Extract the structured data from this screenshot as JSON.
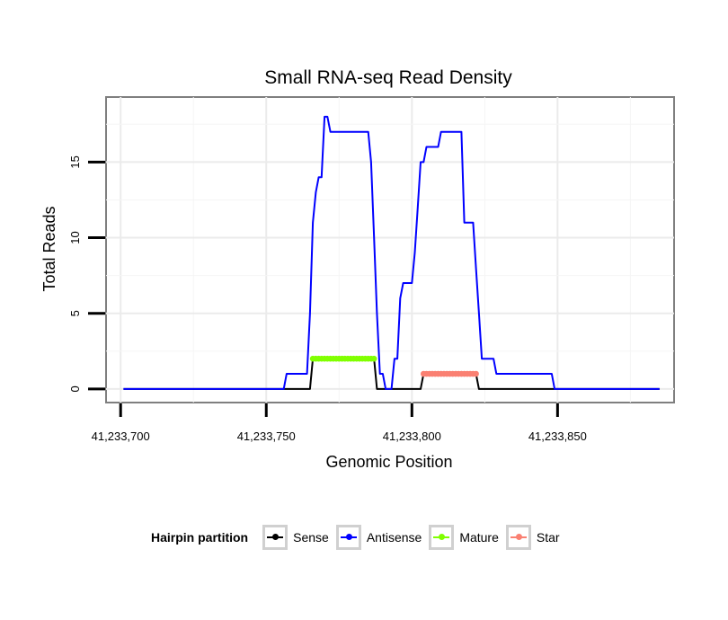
{
  "chart_data": {
    "type": "line",
    "title": "Small RNA-seq Read Density",
    "xlabel": "Genomic Position",
    "ylabel": "Total Reads",
    "xlim": [
      41233695,
      41233890
    ],
    "ylim": [
      -0.9,
      19.3
    ],
    "xticks": [
      41233700,
      41233750,
      41233800,
      41233850
    ],
    "xtick_labels": [
      "41,233,700",
      "41,233,750",
      "41,233,800",
      "41,233,850"
    ],
    "yticks": [
      0,
      5,
      10,
      15
    ],
    "ytick_labels": [
      "0",
      "5",
      "10",
      "15"
    ],
    "grid": true,
    "legend_position": "bottom",
    "legend_title": "Hairpin partition",
    "series": [
      {
        "name": "Sense",
        "color": "#000000",
        "style": "line",
        "points": [
          [
            41233701,
            0
          ],
          [
            41233765,
            0
          ],
          [
            41233766,
            2
          ],
          [
            41233787,
            2
          ],
          [
            41233788,
            0
          ],
          [
            41233803,
            0
          ],
          [
            41233804,
            1
          ],
          [
            41233822,
            1
          ],
          [
            41233823,
            0
          ],
          [
            41233885,
            0
          ]
        ]
      },
      {
        "name": "Antisense",
        "color": "#0000ff",
        "style": "line",
        "points": [
          [
            41233701,
            0
          ],
          [
            41233756,
            0
          ],
          [
            41233757,
            1
          ],
          [
            41233764,
            1
          ],
          [
            41233765,
            5
          ],
          [
            41233766,
            11
          ],
          [
            41233767,
            13
          ],
          [
            41233768,
            14
          ],
          [
            41233769,
            14
          ],
          [
            41233770,
            18
          ],
          [
            41233771,
            18
          ],
          [
            41233772,
            17
          ],
          [
            41233785,
            17
          ],
          [
            41233786,
            15
          ],
          [
            41233787,
            10
          ],
          [
            41233788,
            5
          ],
          [
            41233789,
            1
          ],
          [
            41233790,
            1
          ],
          [
            41233791,
            0
          ],
          [
            41233793,
            0
          ],
          [
            41233794,
            2
          ],
          [
            41233795,
            2
          ],
          [
            41233796,
            6
          ],
          [
            41233797,
            7
          ],
          [
            41233800,
            7
          ],
          [
            41233801,
            9
          ],
          [
            41233802,
            12
          ],
          [
            41233803,
            15
          ],
          [
            41233804,
            15
          ],
          [
            41233805,
            16
          ],
          [
            41233809,
            16
          ],
          [
            41233810,
            17
          ],
          [
            41233817,
            17
          ],
          [
            41233818,
            11
          ],
          [
            41233821,
            11
          ],
          [
            41233822,
            8
          ],
          [
            41233823,
            5
          ],
          [
            41233824,
            2
          ],
          [
            41233828,
            2
          ],
          [
            41233829,
            1
          ],
          [
            41233848,
            1
          ],
          [
            41233849,
            0
          ],
          [
            41233885,
            0
          ]
        ]
      },
      {
        "name": "Mature",
        "color": "#80ff00",
        "style": "dots",
        "points": [
          [
            41233766,
            2
          ],
          [
            41233767,
            2
          ],
          [
            41233768,
            2
          ],
          [
            41233769,
            2
          ],
          [
            41233770,
            2
          ],
          [
            41233771,
            2
          ],
          [
            41233772,
            2
          ],
          [
            41233773,
            2
          ],
          [
            41233774,
            2
          ],
          [
            41233775,
            2
          ],
          [
            41233776,
            2
          ],
          [
            41233777,
            2
          ],
          [
            41233778,
            2
          ],
          [
            41233779,
            2
          ],
          [
            41233780,
            2
          ],
          [
            41233781,
            2
          ],
          [
            41233782,
            2
          ],
          [
            41233783,
            2
          ],
          [
            41233784,
            2
          ],
          [
            41233785,
            2
          ],
          [
            41233786,
            2
          ],
          [
            41233787,
            2
          ]
        ]
      },
      {
        "name": "Star",
        "color": "#fa8072",
        "style": "dots",
        "points": [
          [
            41233804,
            1
          ],
          [
            41233805,
            1
          ],
          [
            41233806,
            1
          ],
          [
            41233807,
            1
          ],
          [
            41233808,
            1
          ],
          [
            41233809,
            1
          ],
          [
            41233810,
            1
          ],
          [
            41233811,
            1
          ],
          [
            41233812,
            1
          ],
          [
            41233813,
            1
          ],
          [
            41233814,
            1
          ],
          [
            41233815,
            1
          ],
          [
            41233816,
            1
          ],
          [
            41233817,
            1
          ],
          [
            41233818,
            1
          ],
          [
            41233819,
            1
          ],
          [
            41233820,
            1
          ],
          [
            41233821,
            1
          ],
          [
            41233822,
            1
          ]
        ]
      }
    ]
  }
}
